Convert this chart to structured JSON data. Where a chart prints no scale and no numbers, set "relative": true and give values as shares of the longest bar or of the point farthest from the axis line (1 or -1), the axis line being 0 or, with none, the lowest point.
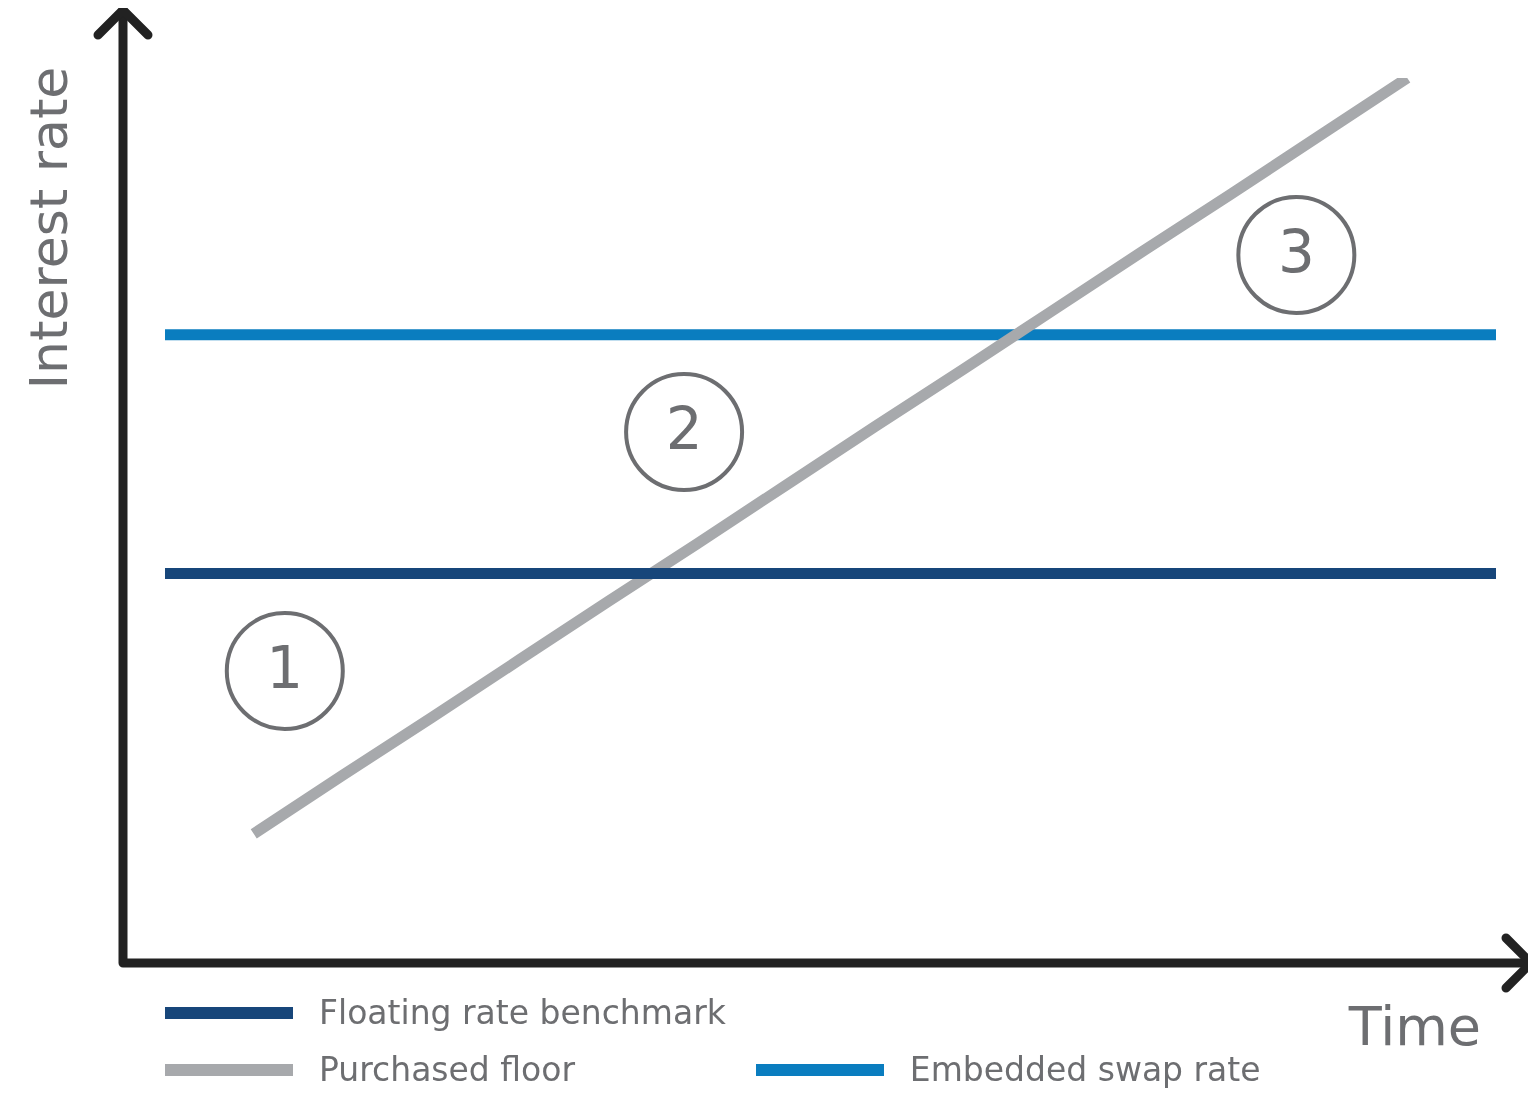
{
  "chart_data": {
    "type": "line",
    "relative": true,
    "xlabel": "Time",
    "ylabel": "Interest rate",
    "legend": "bottom",
    "marker": "none",
    "line_style": "solid",
    "categories": [
      null,
      null,
      null,
      null,
      null,
      null,
      null,
      null,
      null,
      null,
      null,
      null,
      null,
      null,
      null,
      null
    ],
    "series": [
      {
        "name": "Floating rate benchmark",
        "color": "#17467a",
        "values": [
          0.44,
          0.44,
          0.44,
          0.44,
          0.44,
          0.44,
          0.44,
          0.44,
          0.44,
          0.44,
          0.44,
          0.44,
          0.44,
          0.44,
          0.44,
          0.44
        ]
      },
      {
        "name": "Purchased floor",
        "color": "#a7a9ac",
        "values": [
          null,
          0.146,
          0.212,
          0.277,
          0.343,
          0.409,
          0.474,
          0.54,
          0.606,
          0.671,
          0.737,
          0.803,
          0.868,
          0.934,
          1,
          null
        ]
      },
      {
        "name": "Embedded swap rate",
        "color": "#0a7dbf",
        "values": [
          0.71,
          0.71,
          0.71,
          0.71,
          0.71,
          0.71,
          0.71,
          0.71,
          0.71,
          0.71,
          0.71,
          0.71,
          0.71,
          0.71,
          0.71,
          0.71
        ]
      }
    ],
    "annotations": [
      "1",
      "2",
      "3"
    ]
  }
}
